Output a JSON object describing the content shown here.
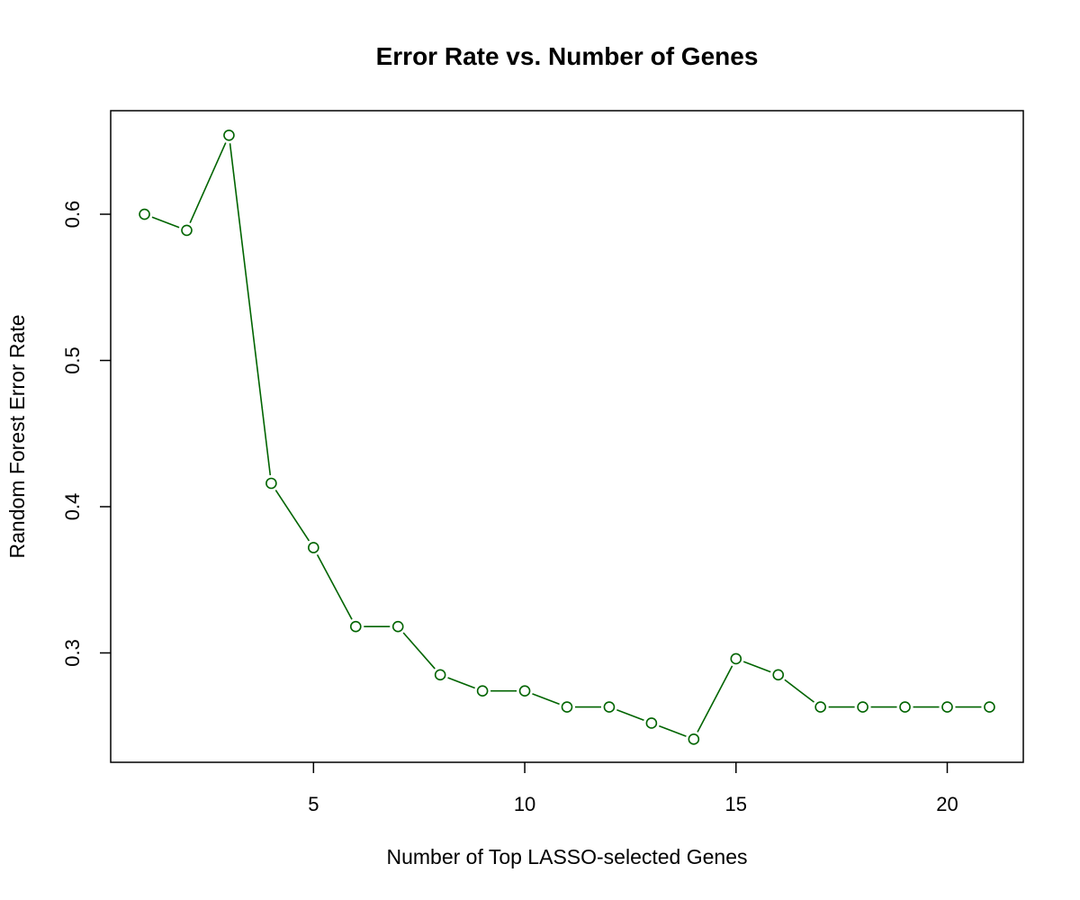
{
  "chart_data": {
    "type": "line",
    "title": "Error Rate vs. Number of Genes",
    "xlabel": "Number of Top LASSO-selected Genes",
    "ylabel": "Random Forest Error Rate",
    "x": [
      1,
      2,
      3,
      4,
      5,
      6,
      7,
      8,
      9,
      10,
      11,
      12,
      13,
      14,
      15,
      16,
      17,
      18,
      19,
      20,
      21
    ],
    "series": [
      {
        "values": [
          0.6,
          0.589,
          0.654,
          0.416,
          0.372,
          0.318,
          0.318,
          0.285,
          0.274,
          0.274,
          0.263,
          0.263,
          0.252,
          0.241,
          0.296,
          0.285,
          0.263,
          0.263,
          0.263,
          0.263,
          0.263
        ],
        "color": "#006400",
        "marker": "open-circle"
      }
    ],
    "xticks": [
      5,
      10,
      15,
      20
    ],
    "xtick_labels": [
      "5",
      "10",
      "15",
      "20"
    ],
    "yticks": [
      0.3,
      0.4,
      0.5,
      0.6
    ],
    "ytick_labels": [
      "0.3",
      "0.4",
      "0.5",
      "0.6"
    ],
    "xlim": [
      0.2,
      21.8
    ],
    "ylim": [
      0.2252,
      0.6708
    ],
    "grid": false,
    "legend": "none"
  }
}
